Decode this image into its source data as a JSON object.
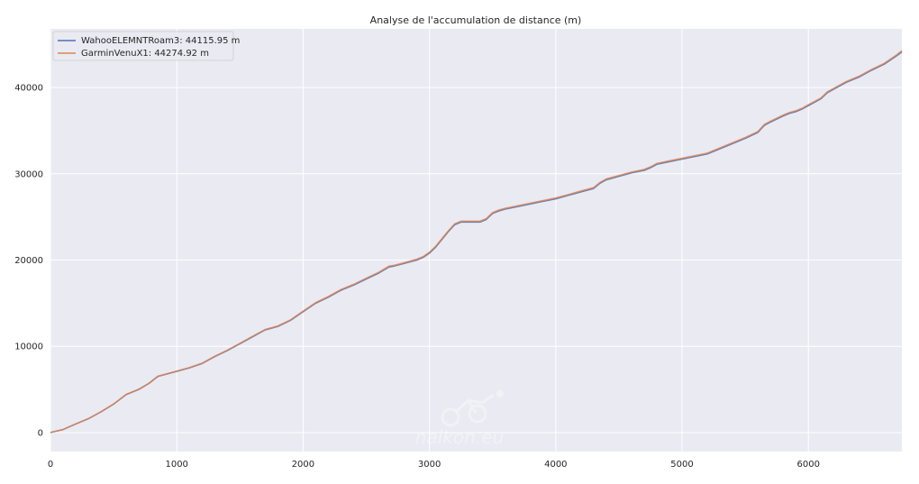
{
  "chart_data": {
    "type": "line",
    "title": "Analyse de l'accumulation de distance (m)",
    "xlabel": "",
    "ylabel": "",
    "xlim": [
      0,
      6740
    ],
    "ylim": [
      -2200,
      46800
    ],
    "xticks": [
      0,
      1000,
      2000,
      3000,
      4000,
      5000,
      6000
    ],
    "yticks": [
      0,
      10000,
      20000,
      30000,
      40000
    ],
    "grid": true,
    "legend_position": "top-left",
    "background": "#eaeaf2",
    "grid_color": "#ffffff",
    "watermark": "naikon.eu",
    "series": [
      {
        "name": "WahooELEMNTRoam3: 44115.95 m",
        "color": "#4c72b0",
        "x": [
          0,
          100,
          200,
          300,
          400,
          500,
          600,
          700,
          780,
          850,
          900,
          1000,
          1100,
          1200,
          1300,
          1400,
          1500,
          1600,
          1700,
          1750,
          1800,
          1900,
          2000,
          2100,
          2200,
          2300,
          2400,
          2500,
          2600,
          2680,
          2720,
          2800,
          2900,
          2950,
          3000,
          3050,
          3100,
          3150,
          3200,
          3250,
          3300,
          3350,
          3400,
          3450,
          3500,
          3550,
          3600,
          3700,
          3800,
          3900,
          4000,
          4100,
          4200,
          4300,
          4350,
          4400,
          4500,
          4600,
          4700,
          4750,
          4800,
          4900,
          5000,
          5100,
          5200,
          5300,
          5350,
          5400,
          5500,
          5600,
          5650,
          5700,
          5800,
          5850,
          5900,
          5950,
          6000,
          6050,
          6100,
          6150,
          6200,
          6300,
          6400,
          6500,
          6600,
          6650,
          6700,
          6740
        ],
        "y": [
          0,
          350,
          1000,
          1600,
          2400,
          3300,
          4400,
          5000,
          5700,
          6500,
          6700,
          7100,
          7500,
          8000,
          8800,
          9500,
          10300,
          11100,
          11900,
          12100,
          12300,
          13000,
          14000,
          15000,
          15700,
          16500,
          17100,
          17800,
          18500,
          19200,
          19300,
          19600,
          20000,
          20300,
          20800,
          21500,
          22400,
          23300,
          24100,
          24400,
          24400,
          24400,
          24400,
          24700,
          25400,
          25700,
          25900,
          26200,
          26500,
          26800,
          27100,
          27500,
          27900,
          28300,
          28900,
          29300,
          29700,
          30100,
          30400,
          30700,
          31100,
          31400,
          31700,
          32000,
          32300,
          32900,
          33200,
          33500,
          34100,
          34800,
          35600,
          36000,
          36700,
          37000,
          37200,
          37500,
          37900,
          38300,
          38700,
          39400,
          39800,
          40600,
          41200,
          42000,
          42700,
          43200,
          43700,
          44116
        ]
      },
      {
        "name": "GarminVenuX1: 44274.92 m",
        "color": "#dd8452",
        "x": [
          0,
          100,
          200,
          300,
          400,
          500,
          600,
          700,
          780,
          850,
          900,
          1000,
          1100,
          1200,
          1300,
          1400,
          1500,
          1600,
          1700,
          1750,
          1800,
          1900,
          2000,
          2100,
          2200,
          2300,
          2400,
          2500,
          2600,
          2680,
          2720,
          2800,
          2900,
          2950,
          3000,
          3050,
          3100,
          3150,
          3200,
          3250,
          3300,
          3350,
          3400,
          3450,
          3500,
          3550,
          3600,
          3700,
          3800,
          3900,
          4000,
          4100,
          4200,
          4300,
          4350,
          4400,
          4500,
          4600,
          4700,
          4750,
          4800,
          4900,
          5000,
          5100,
          5200,
          5300,
          5350,
          5400,
          5500,
          5600,
          5650,
          5700,
          5800,
          5850,
          5900,
          5950,
          6000,
          6050,
          6100,
          6150,
          6200,
          6300,
          6400,
          6500,
          6600,
          6650,
          6700,
          6740
        ],
        "y": [
          0,
          360,
          1010,
          1620,
          2420,
          3320,
          4430,
          5030,
          5730,
          6530,
          6730,
          7130,
          7540,
          8040,
          8840,
          9550,
          10350,
          11160,
          11960,
          12160,
          12360,
          13060,
          14070,
          15070,
          15780,
          16580,
          17180,
          17890,
          18590,
          19290,
          19390,
          19690,
          20100,
          20400,
          20900,
          21600,
          22500,
          23400,
          24200,
          24500,
          24500,
          24500,
          24500,
          24800,
          25500,
          25800,
          26000,
          26300,
          26600,
          26900,
          27200,
          27600,
          28000,
          28400,
          29000,
          29400,
          29800,
          30200,
          30500,
          30800,
          31200,
          31500,
          31800,
          32100,
          32400,
          33000,
          33300,
          33600,
          34200,
          34900,
          35700,
          36100,
          36800,
          37100,
          37300,
          37600,
          38000,
          38400,
          38800,
          39500,
          39900,
          40700,
          41300,
          42100,
          42800,
          43300,
          43800,
          44275
        ]
      }
    ]
  }
}
